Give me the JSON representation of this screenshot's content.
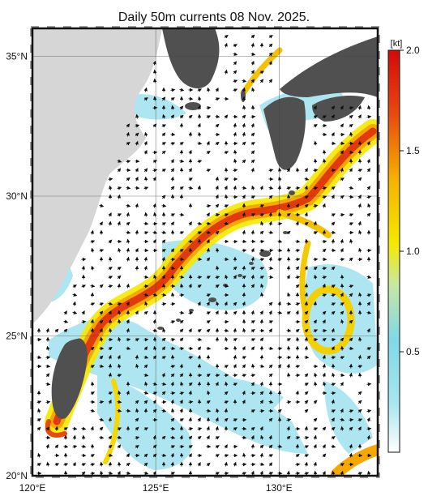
{
  "title": "Daily 50m currents 08 Nov. 2025.",
  "map": {
    "lat_ticks": [
      {
        "value": 35,
        "label": "35°N"
      },
      {
        "value": 30,
        "label": "30°N"
      },
      {
        "value": 25,
        "label": "25°N"
      },
      {
        "value": 20,
        "label": "20°N"
      }
    ],
    "lon_ticks": [
      {
        "value": 120,
        "label": "120°E"
      },
      {
        "value": 125,
        "label": "125°E"
      },
      {
        "value": 130,
        "label": "130°E"
      }
    ],
    "extent": {
      "lon": [
        120,
        134
      ],
      "lat": [
        20,
        36
      ]
    }
  },
  "colorbar": {
    "unit": "[kt]",
    "range": [
      0,
      2.0
    ],
    "tick_labels": [
      "2.0",
      "1.5",
      "1.0",
      "0.5"
    ],
    "tick_values": [
      2.0,
      1.5,
      1.0,
      0.5
    ],
    "colors": [
      "#ffffff",
      "#7fd8e8",
      "#c9e8a0",
      "#f5e800",
      "#f7a800",
      "#e84a10",
      "#d10a0a"
    ]
  }
}
